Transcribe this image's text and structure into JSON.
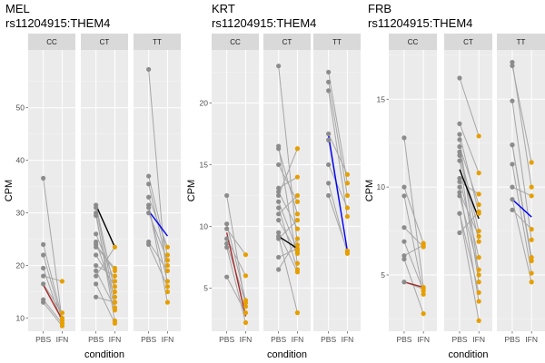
{
  "figure": {
    "colors": {
      "panel_bg": "#ebebeb",
      "grid_major": "#ffffff",
      "grid_minor": "#f5f5f5",
      "strip_bg": "#d9d9d9",
      "point_pbs": "#8c8c8c",
      "point_ifn": "#e69f00",
      "pair_line": "#a6a6a6",
      "summary_cc": "#a52a2a",
      "summary_ct": "#000000",
      "summary_tt": "#0000ff"
    }
  },
  "chart_data": [
    {
      "type": "line",
      "title_line1": "MEL",
      "title_line2": "rs11204915:THEM4",
      "xlabel": "",
      "ylabel": "CPM",
      "x_categories": [
        "PBS",
        "IFN"
      ],
      "facets": [
        "CC",
        "CT",
        "TT"
      ],
      "ylim": [
        7.5,
        61
      ],
      "yticks": [
        10,
        20,
        30,
        40,
        50
      ],
      "pairs": {
        "CC": [
          [
            36.6,
            9.5
          ],
          [
            24.0,
            10.0
          ],
          [
            22.0,
            9.5
          ],
          [
            19.5,
            9.0
          ],
          [
            18.0,
            17.0
          ],
          [
            16.5,
            11.0
          ],
          [
            13.5,
            9.0
          ],
          [
            13.0,
            8.5
          ]
        ],
        "CT": [
          [
            31.5,
            15.0
          ],
          [
            31.0,
            13.0
          ],
          [
            30.0,
            9.5
          ],
          [
            29.5,
            11.5
          ],
          [
            26.0,
            17.0
          ],
          [
            24.5,
            14.0
          ],
          [
            24.0,
            19.0
          ],
          [
            23.5,
            19.5
          ],
          [
            22.0,
            16.0
          ],
          [
            20.0,
            18.0
          ],
          [
            19.0,
            12.0
          ],
          [
            18.0,
            23.5
          ],
          [
            16.5,
            9.0
          ],
          [
            14.0,
            13.0
          ]
        ],
        "TT": [
          [
            57.3,
            15.0
          ],
          [
            37.0,
            22.0
          ],
          [
            35.5,
            20.0
          ],
          [
            33.0,
            23.5
          ],
          [
            31.5,
            13.0
          ],
          [
            31.0,
            17.0
          ],
          [
            30.0,
            21.0
          ],
          [
            24.5,
            19.0
          ],
          [
            24.0,
            16.0
          ]
        ]
      },
      "summary": {
        "CC": [
          16.3,
          9.7
        ],
        "CT": [
          31.5,
          23.5
        ],
        "TT": [
          30.4,
          25.6
        ]
      }
    },
    {
      "type": "line",
      "title_line1": "KRT",
      "title_line2": "rs11204915:THEM4",
      "xlabel": "",
      "ylabel": "CPM",
      "x_categories": [
        "PBS",
        "IFN"
      ],
      "facets": [
        "CC",
        "CT",
        "TT"
      ],
      "ylim": [
        1.5,
        24.3
      ],
      "yticks": [
        5,
        10,
        15,
        20
      ],
      "pairs": {
        "CC": [
          [
            12.5,
            3.5
          ],
          [
            10.2,
            4.0
          ],
          [
            9.8,
            7.7
          ],
          [
            9.0,
            6.0
          ],
          [
            8.6,
            3.8
          ],
          [
            8.3,
            2.2
          ],
          [
            5.9,
            3.0
          ]
        ],
        "CT": [
          [
            23.0,
            8.5
          ],
          [
            16.5,
            7.0
          ],
          [
            16.3,
            11.0
          ],
          [
            15.0,
            12.0
          ],
          [
            13.1,
            14.0
          ],
          [
            12.8,
            9.8
          ],
          [
            12.5,
            16.3
          ],
          [
            12.0,
            8.0
          ],
          [
            11.5,
            6.5
          ],
          [
            11.0,
            12.5
          ],
          [
            10.5,
            7.8
          ],
          [
            9.5,
            6.3
          ],
          [
            9.2,
            3.0
          ],
          [
            9.0,
            10.5
          ],
          [
            7.5,
            8.2
          ],
          [
            6.5,
            9.0
          ]
        ],
        "TT": [
          [
            22.5,
            13.5
          ],
          [
            21.7,
            12.5
          ],
          [
            21.0,
            10.8
          ],
          [
            17.5,
            14.2
          ],
          [
            17.0,
            8.0
          ],
          [
            15.0,
            11.5
          ],
          [
            13.5,
            7.8
          ],
          [
            12.5,
            8.0
          ]
        ]
      },
      "summary": {
        "CC": [
          9.5,
          2.7
        ],
        "CT": [
          9.2,
          8.2
        ],
        "TT": [
          17.4,
          8.0
        ]
      }
    },
    {
      "type": "line",
      "title_line1": "FRB",
      "title_line2": "rs11204915:THEM4",
      "xlabel": "condition",
      "ylabel": "CPM",
      "x_categories": [
        "PBS",
        "IFN"
      ],
      "facets": [
        "CC",
        "CT",
        "TT"
      ],
      "ylim": [
        1.8,
        17.8
      ],
      "yticks": [
        5,
        10,
        15
      ],
      "pairs": {
        "CC": [
          [
            12.8,
            4.3
          ],
          [
            10.0,
            6.8
          ],
          [
            9.5,
            3.9
          ],
          [
            7.7,
            6.6
          ],
          [
            6.9,
            4.1
          ],
          [
            6.1,
            6.7
          ],
          [
            5.9,
            2.8
          ],
          [
            4.6,
            4.2
          ]
        ],
        "CT": [
          [
            16.2,
            12.9
          ],
          [
            13.6,
            10.8
          ],
          [
            13.0,
            8.5
          ],
          [
            12.7,
            5.0
          ],
          [
            12.3,
            9.0
          ],
          [
            12.0,
            7.5
          ],
          [
            11.8,
            6.9
          ],
          [
            11.5,
            4.6
          ],
          [
            10.5,
            6.0
          ],
          [
            10.3,
            9.6
          ],
          [
            10.0,
            3.5
          ],
          [
            9.7,
            7.2
          ],
          [
            9.5,
            5.3
          ],
          [
            8.5,
            4.0
          ],
          [
            8.5,
            2.4
          ],
          [
            7.4,
            8.6
          ]
        ],
        "TT": [
          [
            17.1,
            10.0
          ],
          [
            16.9,
            11.4
          ],
          [
            14.9,
            7.0
          ],
          [
            12.4,
            6.0
          ],
          [
            12.4,
            5.8
          ],
          [
            11.3,
            5.1
          ],
          [
            10.0,
            9.5
          ],
          [
            9.3,
            4.6
          ],
          [
            8.7,
            7.6
          ]
        ]
      },
      "summary": {
        "CC": [
          4.6,
          4.3
        ],
        "CT": [
          11.0,
          8.2
        ],
        "TT": [
          9.3,
          8.3
        ]
      }
    }
  ]
}
